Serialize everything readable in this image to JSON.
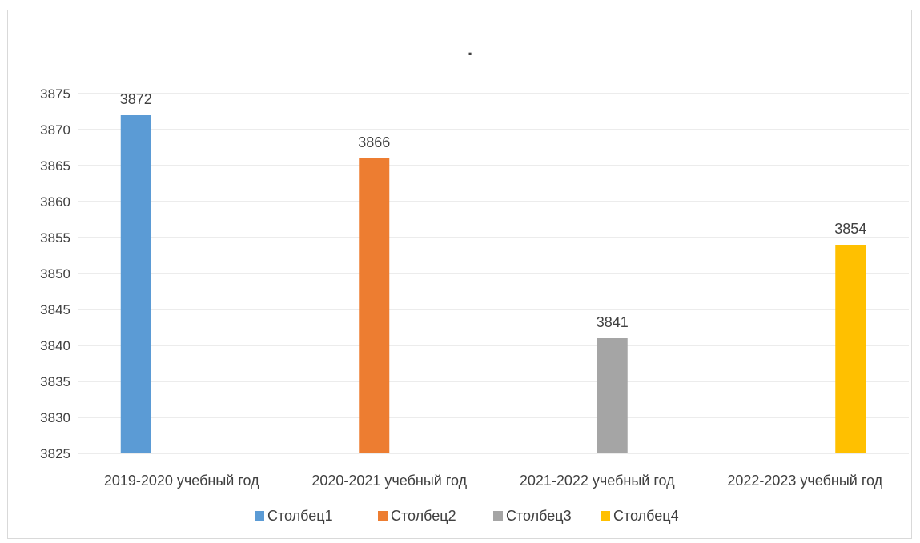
{
  "chart_data": {
    "type": "bar",
    "title": ".",
    "categories": [
      "2019-2020 учебный год",
      "2020-2021 учебный год",
      "2021-2022 учебный год",
      "2022-2023 учебный год"
    ],
    "series": [
      {
        "name": "Столбец1",
        "color": "#5b9bd5",
        "values": [
          3872,
          null,
          null,
          null
        ]
      },
      {
        "name": "Столбец2",
        "color": "#ed7d31",
        "values": [
          null,
          3866,
          null,
          null
        ]
      },
      {
        "name": "Столбец3",
        "color": "#a5a5a5",
        "values": [
          null,
          null,
          3841,
          null
        ]
      },
      {
        "name": "Столбец4",
        "color": "#ffc000",
        "values": [
          null,
          null,
          null,
          3854
        ]
      }
    ],
    "ylim": [
      3825,
      3875
    ],
    "ytick_step": 5,
    "yticks": [
      "3825",
      "3830",
      "3835",
      "3840",
      "3845",
      "3850",
      "3855",
      "3860",
      "3865",
      "3870",
      "3875"
    ],
    "grid": true,
    "legend_position": "bottom",
    "data_labels": [
      "3872",
      "3866",
      "3841",
      "3854"
    ]
  }
}
